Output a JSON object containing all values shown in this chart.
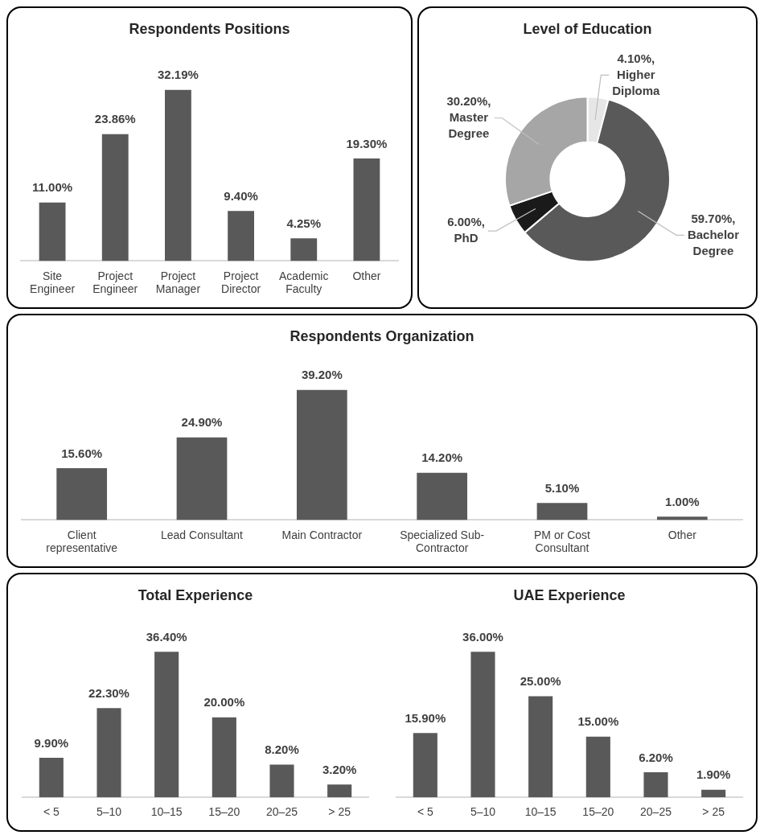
{
  "chart_data": [
    {
      "type": "bar",
      "title": "Respondents Positions",
      "categories": [
        "Site Engineer",
        "Project Engineer",
        "Project Manager",
        "Project Director",
        "Academic Faculty",
        "Other"
      ],
      "values": [
        11.0,
        23.86,
        32.19,
        9.4,
        4.25,
        19.3
      ],
      "value_labels": [
        "11.00%",
        "23.86%",
        "32.19%",
        "9.40%",
        "4.25%",
        "19.30%"
      ],
      "color": "#595959"
    },
    {
      "type": "donut",
      "title": "Level of Education",
      "categories": [
        "Higher Diploma",
        "Bachelor Degree",
        "PhD",
        "Master Degree"
      ],
      "values": [
        4.1,
        59.7,
        6.0,
        30.2
      ],
      "value_labels": [
        "4.10%,",
        "59.70%,",
        "6.00%,",
        "30.20%,"
      ],
      "colors": [
        "#e7e6e6",
        "#595959",
        "#1a1a1a",
        "#a6a6a6"
      ]
    },
    {
      "type": "bar",
      "title": "Respondents Organization",
      "categories": [
        "Client representative",
        "Lead Consultant",
        "Main Contractor",
        "Specialized Sub-Contractor",
        "PM or Cost Consultant",
        "Other"
      ],
      "values": [
        15.6,
        24.9,
        39.2,
        14.2,
        5.1,
        1.0
      ],
      "value_labels": [
        "15.60%",
        "24.90%",
        "39.20%",
        "14.20%",
        "5.10%",
        "1.00%"
      ],
      "color": "#595959"
    },
    {
      "type": "bar",
      "title": "Total Experience",
      "categories": [
        "< 5",
        "5–10",
        "10–15",
        "15–20",
        "20–25",
        "> 25"
      ],
      "values": [
        9.9,
        22.3,
        36.4,
        20.0,
        8.2,
        3.2
      ],
      "value_labels": [
        "9.90%",
        "22.30%",
        "36.40%",
        "20.00%",
        "8.20%",
        "3.20%"
      ],
      "color": "#595959"
    },
    {
      "type": "bar",
      "title": "UAE Experience",
      "categories": [
        "< 5",
        "5–10",
        "10–15",
        "15–20",
        "20–25",
        "> 25"
      ],
      "values": [
        15.9,
        36.0,
        25.0,
        15.0,
        6.2,
        1.9
      ],
      "value_labels": [
        "15.90%",
        "36.00%",
        "25.00%",
        "15.00%",
        "6.20%",
        "1.90%"
      ],
      "color": "#595959"
    }
  ]
}
